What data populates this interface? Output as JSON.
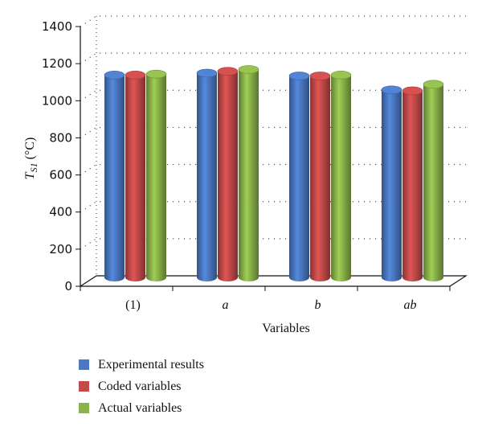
{
  "chart_data": {
    "type": "bar",
    "title": "",
    "xlabel": "Variables",
    "ylabel": "T",
    "ylabel_subscript": "S1",
    "ylabel_unit": "(°C)",
    "categories": [
      "(1)",
      "a",
      "b",
      "ab"
    ],
    "series": [
      {
        "name": "Experimental results",
        "color": "#4a78c2",
        "values": [
          1130,
          1140,
          1125,
          1050
        ]
      },
      {
        "name": "Coded variables",
        "color": "#c44a4a",
        "values": [
          1130,
          1150,
          1125,
          1045
        ]
      },
      {
        "name": "Actual variables",
        "color": "#8ab34a",
        "values": [
          1135,
          1160,
          1130,
          1080
        ]
      }
    ],
    "ylim": [
      0,
      1400
    ],
    "yticks": [
      0,
      200,
      400,
      600,
      800,
      1000,
      1200,
      1400
    ],
    "grid": true,
    "legend_position": "bottom-left"
  }
}
